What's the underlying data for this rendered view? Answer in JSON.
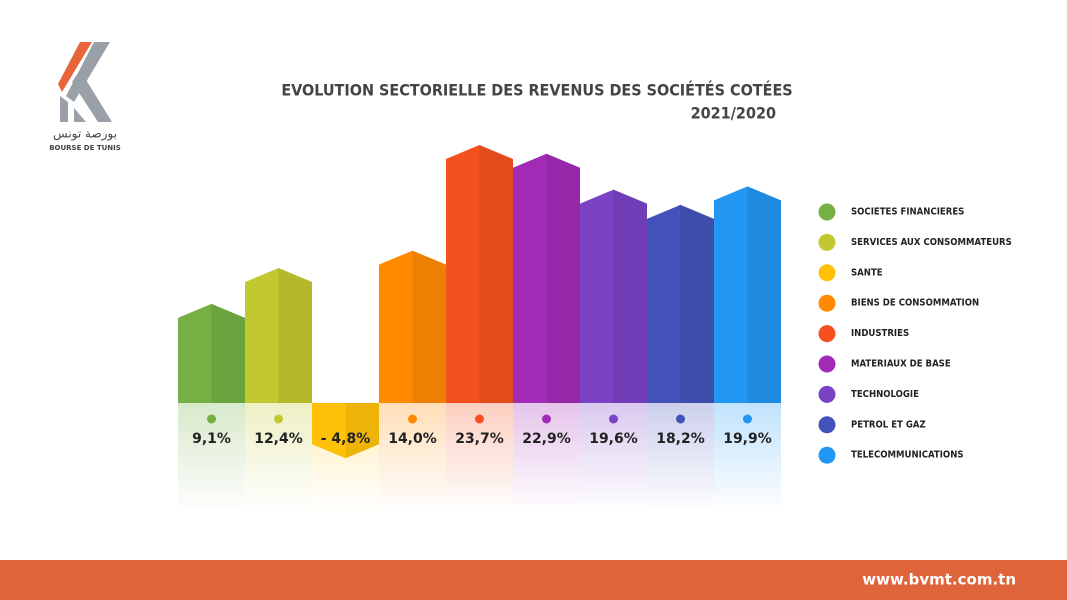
{
  "header": {
    "logo_arabic": "بورصة تونس",
    "logo_text": "BOURSE DE TUNIS"
  },
  "chart_data": {
    "type": "bar",
    "title": "EVOLUTION SECTORIELLE DES REVENUS DES SOCIÉTÉS COTÉES",
    "subtitle": "2021/2020",
    "categories": [
      "SOCIETES FINANCIERES",
      "SERVICES AUX CONSOMMATEURS",
      "SANTE",
      "BIENS DE CONSOMMATION",
      "INDUSTRIES",
      "MATERIAUX DE BASE",
      "TECHNOLOGIE",
      "PETROL ET GAZ",
      "TELECOMMUNICATIONS"
    ],
    "values": [
      9.1,
      12.4,
      -4.8,
      14.0,
      23.7,
      22.9,
      19.6,
      18.2,
      19.9
    ],
    "value_labels": [
      "9,1%",
      "12,4%",
      "- 4,8%",
      "14,0%",
      "23,7%",
      "22,9%",
      "19,6%",
      "18,2%",
      "19,9%"
    ],
    "colors": [
      "#74b043",
      "#c2c82f",
      "#ffc107",
      "#ff8a00",
      "#f4511e",
      "#a12bb5",
      "#7a42c4",
      "#4352b8",
      "#2196f3"
    ],
    "legend": "right"
  },
  "footer": "www.bvmt.com.tn"
}
